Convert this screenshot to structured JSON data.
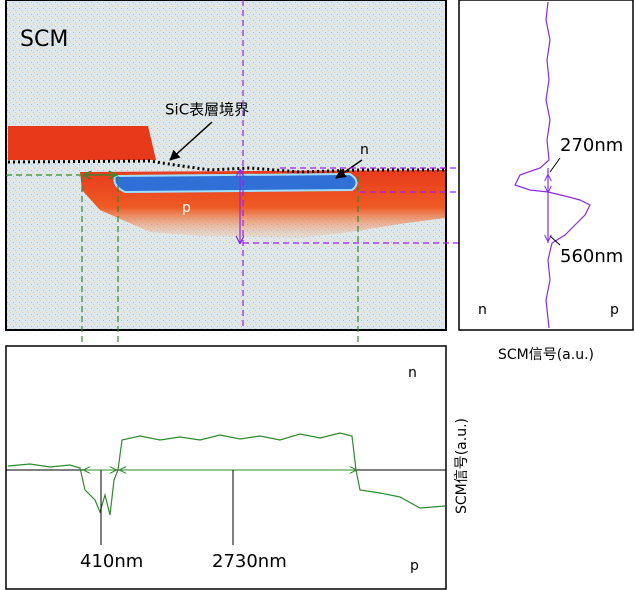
{
  "image_panel": {
    "title": "SCM",
    "boundary_label": "SiC表層境界",
    "n_label": "n",
    "p_label": "p"
  },
  "depth_profile": {
    "upper_depth": "270nm",
    "lower_depth": "560nm",
    "left_label": "n",
    "right_label": "p",
    "axis_label": "SCM信号(a.u.)"
  },
  "lateral_profile": {
    "top_label": "n",
    "bottom_label": "p",
    "left_width": "410nm",
    "center_width": "2730nm",
    "axis_label": "SCM信号(a.u.)"
  }
}
